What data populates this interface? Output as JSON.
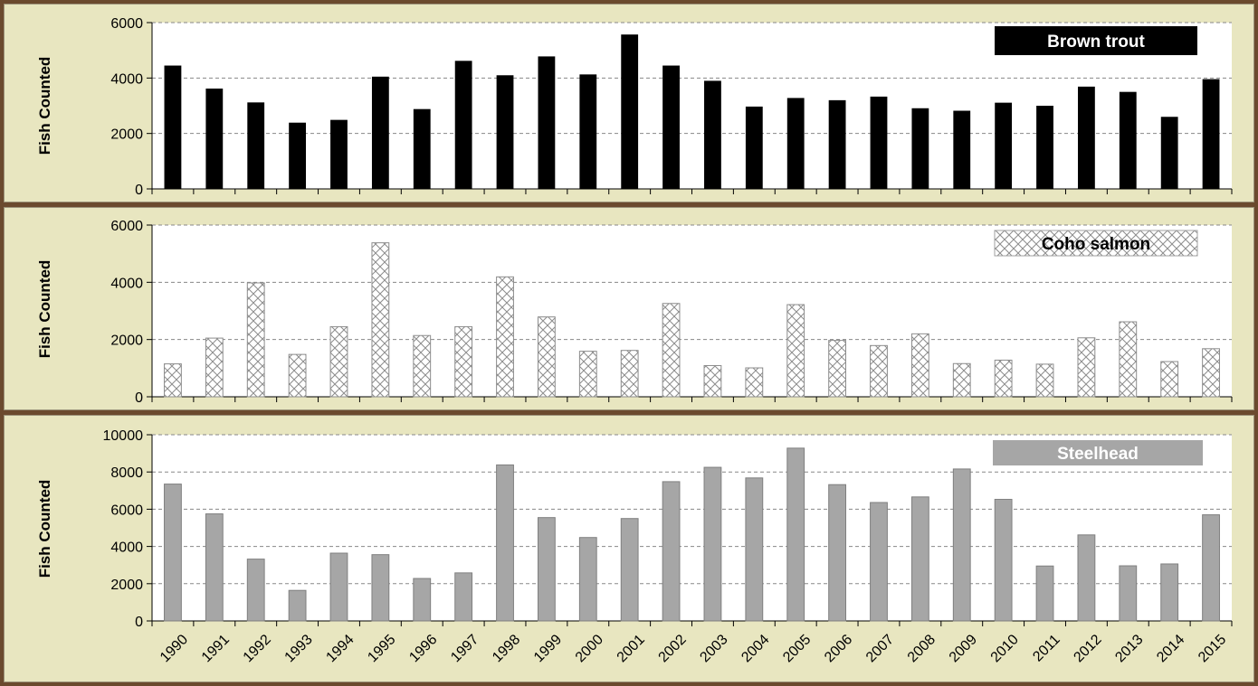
{
  "chart_data": [
    {
      "type": "bar",
      "ylabel": "Fish Counted",
      "ylim": [
        0,
        6000
      ],
      "yticks": [
        0,
        2000,
        4000,
        6000
      ],
      "categories": [
        "1990",
        "1991",
        "1992",
        "1993",
        "1994",
        "1995",
        "1996",
        "1997",
        "1998",
        "1999",
        "2000",
        "2001",
        "2002",
        "2003",
        "2004",
        "2005",
        "2006",
        "2007",
        "2008",
        "2009",
        "2010",
        "2011",
        "2012",
        "2013",
        "2014",
        "2015"
      ],
      "series": [
        {
          "name": "Brown trout",
          "color": "#000000",
          "values": [
            4450,
            3620,
            3120,
            2390,
            2490,
            4050,
            2880,
            4620,
            4100,
            4780,
            4130,
            5570,
            4450,
            3900,
            2970,
            3280,
            3200,
            3330,
            2910,
            2820,
            3110,
            3000,
            3690,
            3500,
            2600,
            3960
          ]
        }
      ],
      "legend": "top-right",
      "grid": true
    },
    {
      "type": "bar",
      "ylabel": "Fish Counted",
      "ylim": [
        0,
        6000
      ],
      "yticks": [
        0,
        2000,
        4000,
        6000
      ],
      "categories": [
        "1990",
        "1991",
        "1992",
        "1993",
        "1994",
        "1995",
        "1996",
        "1997",
        "1998",
        "1999",
        "2000",
        "2001",
        "2002",
        "2003",
        "2004",
        "2005",
        "2006",
        "2007",
        "2008",
        "2009",
        "2010",
        "2011",
        "2012",
        "2013",
        "2014",
        "2015"
      ],
      "series": [
        {
          "name": "Coho salmon",
          "color": "#ffffff",
          "values": [
            1150,
            2050,
            3980,
            1480,
            2450,
            5380,
            2140,
            2450,
            4190,
            2790,
            1590,
            1620,
            3260,
            1090,
            1010,
            3220,
            1970,
            1790,
            2200,
            1160,
            1280,
            1140,
            2060,
            2620,
            1230,
            1680
          ]
        }
      ],
      "legend": "top-right",
      "grid": true
    },
    {
      "type": "bar",
      "ylabel": "Fish Counted",
      "ylim": [
        0,
        10000
      ],
      "yticks": [
        0,
        2000,
        4000,
        6000,
        8000,
        10000
      ],
      "categories": [
        "1990",
        "1991",
        "1992",
        "1993",
        "1994",
        "1995",
        "1996",
        "1997",
        "1998",
        "1999",
        "2000",
        "2001",
        "2002",
        "2003",
        "2004",
        "2005",
        "2006",
        "2007",
        "2008",
        "2009",
        "2010",
        "2011",
        "2012",
        "2013",
        "2014",
        "2015"
      ],
      "series": [
        {
          "name": "Steelhead",
          "color": "#a6a6a6",
          "values": [
            7350,
            5750,
            3320,
            1640,
            3640,
            3560,
            2280,
            2580,
            8380,
            5550,
            4480,
            5500,
            7480,
            8250,
            7680,
            9280,
            7320,
            6360,
            6660,
            8160,
            6530,
            2950,
            4620,
            2960,
            3060,
            5700
          ]
        }
      ],
      "legend": "top-right",
      "grid": true
    }
  ]
}
